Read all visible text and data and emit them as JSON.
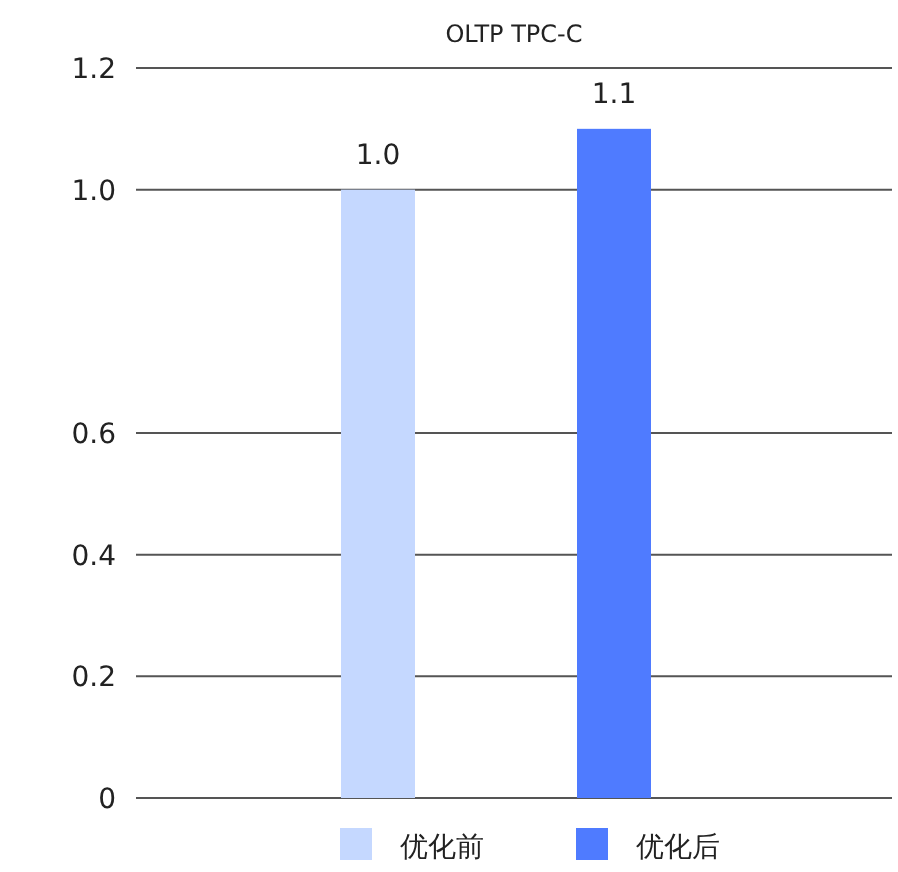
{
  "chart_data": {
    "type": "bar",
    "title": "OLTP TPC-C",
    "categories": [
      null
    ],
    "series": [
      {
        "name": "优化前",
        "color": "#c5d8ff",
        "values": [
          1.0
        ],
        "value_labels": [
          "1.0"
        ]
      },
      {
        "name": "优化后",
        "color": "#4f7bff",
        "values": [
          1.1
        ],
        "value_labels": [
          "1.1"
        ]
      }
    ],
    "ylim": [
      0,
      1.2
    ],
    "yticks": [
      {
        "value": 0,
        "label": "0"
      },
      0.2,
      0.4,
      0.6,
      {
        "value": 1.0,
        "label": "1.0"
      },
      1.2
    ],
    "grid": "y",
    "legend": "bottom"
  }
}
